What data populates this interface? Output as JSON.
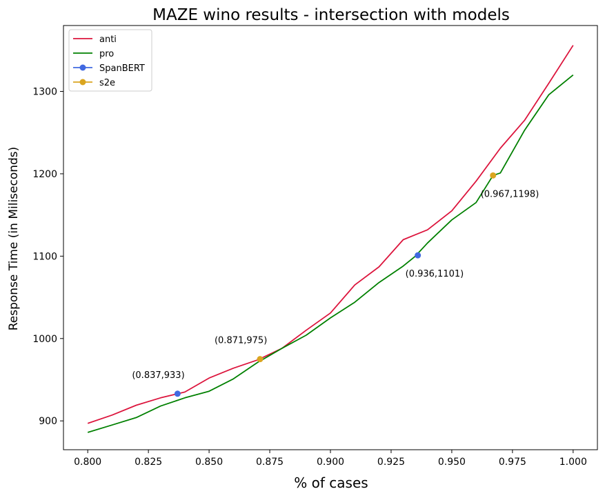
{
  "chart_data": {
    "type": "line",
    "title": "MAZE wino results - intersection with models",
    "xlabel": "% of cases",
    "ylabel": "Response Time (in Miliseconds)",
    "xlim": [
      0.79,
      1.01
    ],
    "ylim": [
      865,
      1380
    ],
    "xticks": [
      0.8,
      0.825,
      0.85,
      0.875,
      0.9,
      0.925,
      0.95,
      0.975,
      1.0
    ],
    "xtick_labels": [
      "0.800",
      "0.825",
      "0.850",
      "0.875",
      "0.900",
      "0.925",
      "0.950",
      "0.975",
      "1.000"
    ],
    "yticks": [
      900,
      1000,
      1100,
      1200,
      1300
    ],
    "ytick_labels": [
      "900",
      "1000",
      "1100",
      "1200",
      "1300"
    ],
    "grid": false,
    "legend_position": "top-left",
    "series": [
      {
        "name": "anti",
        "kind": "line",
        "color": "#dc143c",
        "x": [
          0.8,
          0.81,
          0.82,
          0.83,
          0.84,
          0.85,
          0.86,
          0.87,
          0.88,
          0.89,
          0.9,
          0.91,
          0.92,
          0.93,
          0.935,
          0.94,
          0.95,
          0.96,
          0.97,
          0.98,
          0.99,
          1.0
        ],
        "y": [
          897,
          907,
          919,
          928,
          935,
          952,
          964,
          974,
          988,
          1010,
          1031,
          1065,
          1087,
          1120,
          1126,
          1132,
          1155,
          1191,
          1231,
          1265,
          1310,
          1356
        ]
      },
      {
        "name": "pro",
        "kind": "line",
        "color": "#008000",
        "x": [
          0.8,
          0.81,
          0.82,
          0.83,
          0.84,
          0.85,
          0.86,
          0.87,
          0.88,
          0.89,
          0.9,
          0.91,
          0.92,
          0.93,
          0.935,
          0.94,
          0.95,
          0.96,
          0.967,
          0.97,
          0.98,
          0.99,
          1.0
        ],
        "y": [
          886,
          895,
          904,
          918,
          928,
          936,
          951,
          971,
          988,
          1004,
          1025,
          1044,
          1068,
          1088,
          1100,
          1116,
          1144,
          1165,
          1198,
          1201,
          1253,
          1296,
          1320
        ]
      },
      {
        "name": "SpanBERT",
        "kind": "points",
        "color": "#4169e1",
        "x": [
          0.837,
          0.936
        ],
        "y": [
          933,
          1101
        ]
      },
      {
        "name": "s2e",
        "kind": "points",
        "color": "#daa520",
        "x": [
          0.871,
          0.967
        ],
        "y": [
          975,
          1198
        ]
      }
    ],
    "annotations": [
      {
        "text": "(0.837,933)",
        "x": 0.837,
        "y": 933
      },
      {
        "text": "(0.871,975)",
        "x": 0.871,
        "y": 975
      },
      {
        "text": "(0.936,1101)",
        "x": 0.936,
        "y": 1101
      },
      {
        "text": "(0.967,1198)",
        "x": 0.967,
        "y": 1198
      }
    ]
  }
}
